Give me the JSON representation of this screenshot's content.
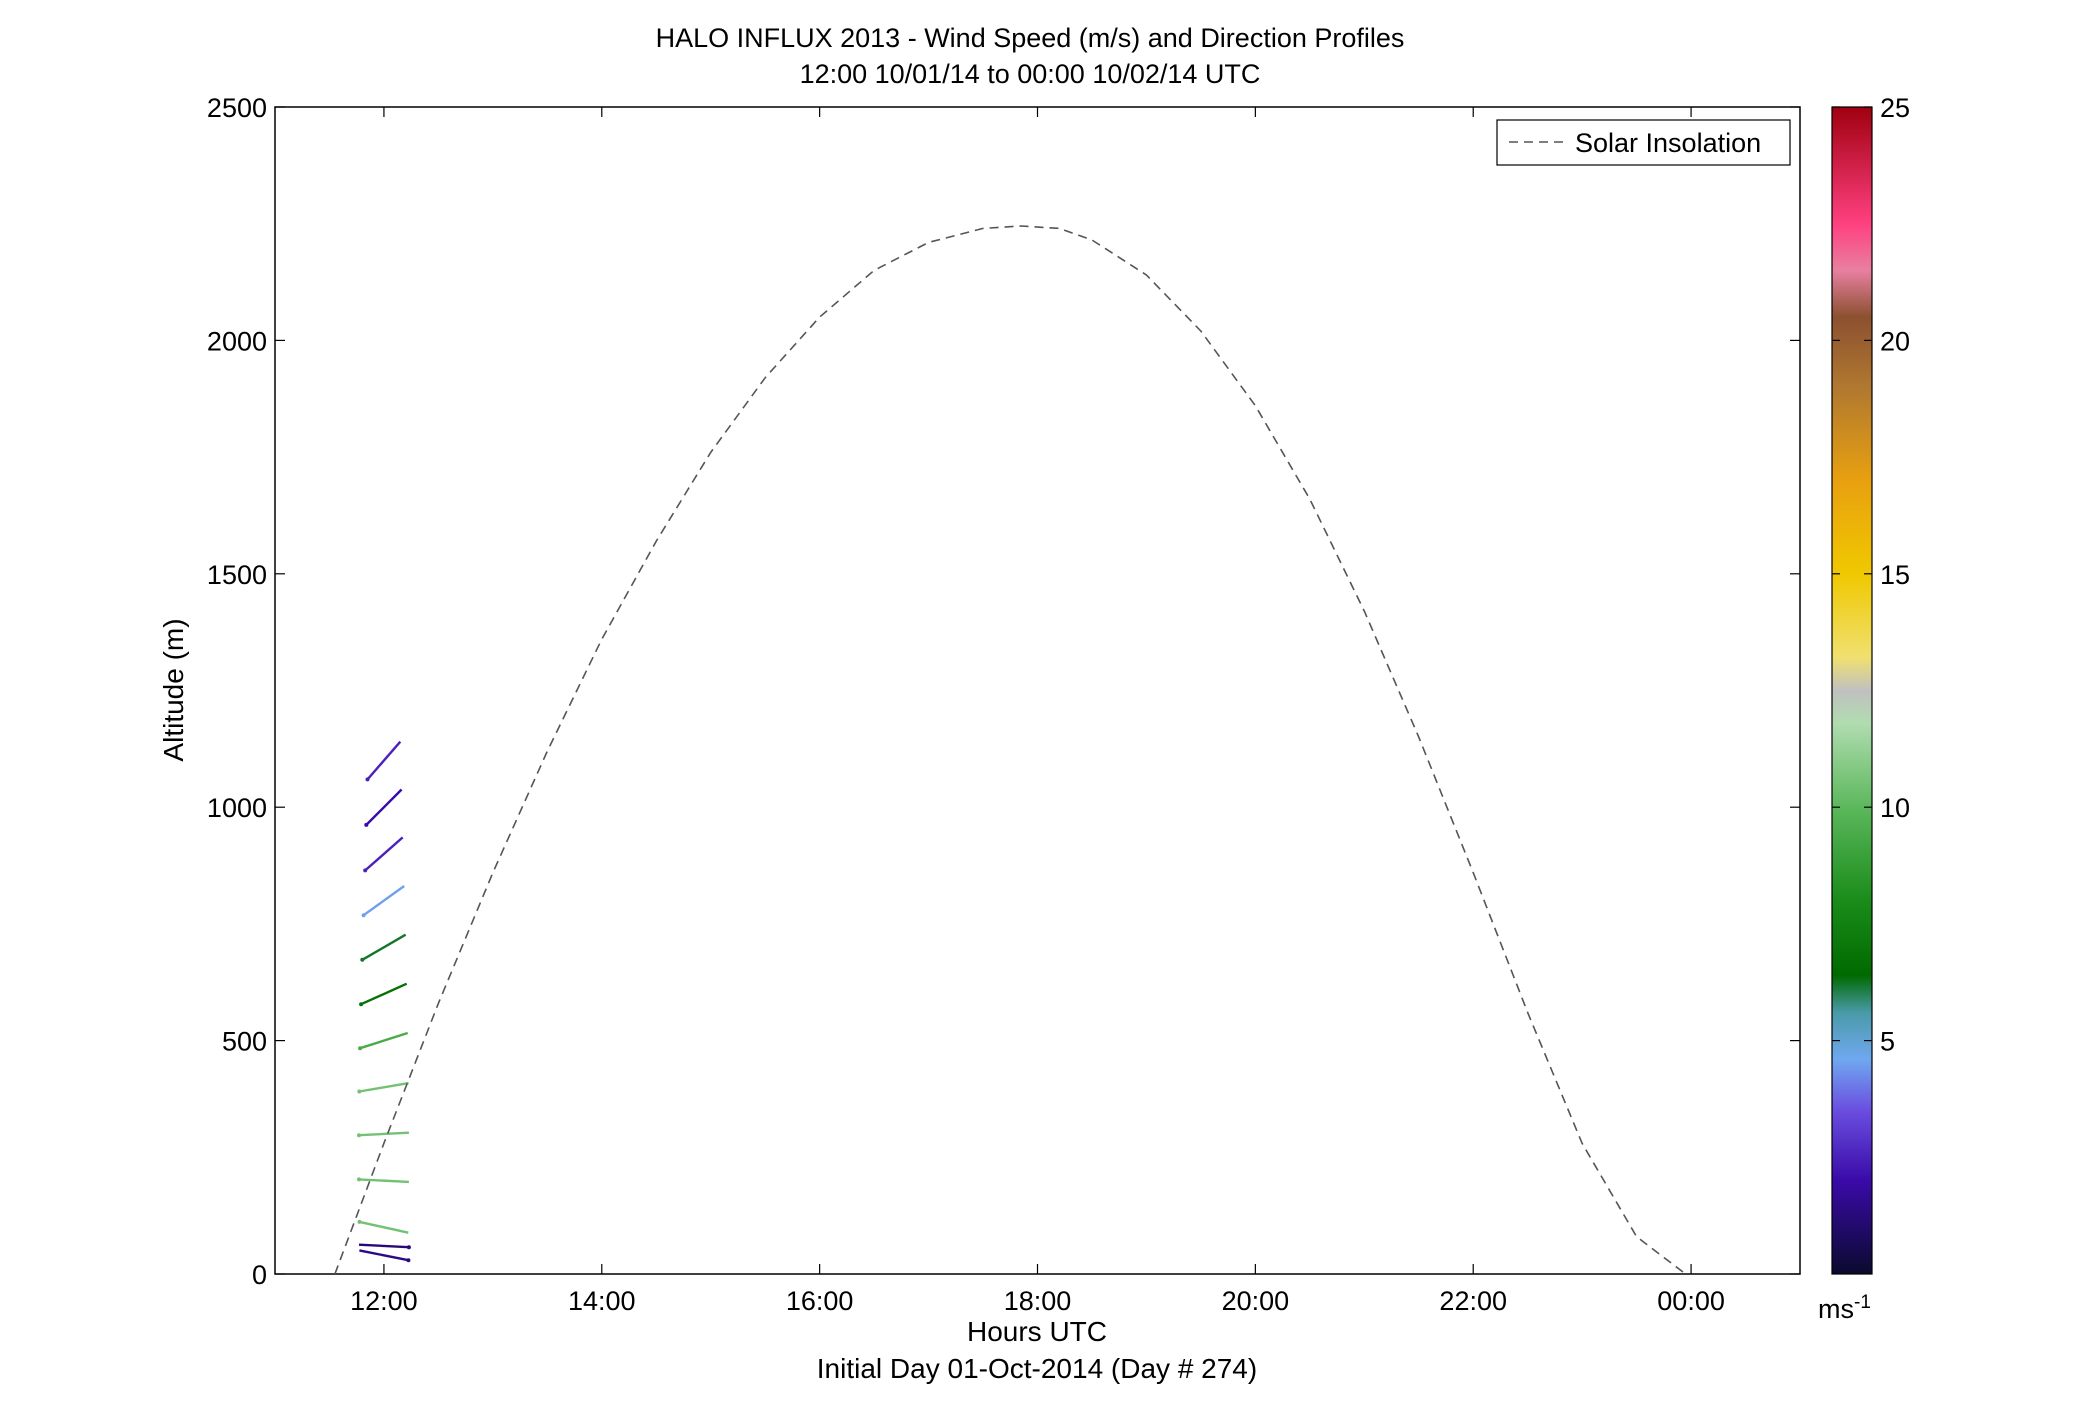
{
  "chart_data": {
    "type": "scatter",
    "subtype": "wind-barb-profile",
    "title": "HALO INFLUX 2013 - Wind Speed (m/s) and Direction Profiles",
    "subtitle": "12:00 10/01/14 to 00:00 10/02/14  UTC",
    "xlabel": "Hours UTC",
    "xlabel2": "Initial Day 01-Oct-2014 (Day # 274)",
    "ylabel": "Altitude (m)",
    "xlim": [
      11.0,
      25.0
    ],
    "ylim": [
      0,
      2500
    ],
    "xticks": [
      {
        "value": 12,
        "label": "12:00"
      },
      {
        "value": 14,
        "label": "14:00"
      },
      {
        "value": 16,
        "label": "16:00"
      },
      {
        "value": 18,
        "label": "18:00"
      },
      {
        "value": 20,
        "label": "20:00"
      },
      {
        "value": 22,
        "label": "22:00"
      },
      {
        "value": 24,
        "label": "00:00"
      }
    ],
    "yticks": [
      {
        "value": 0,
        "label": "0"
      },
      {
        "value": 500,
        "label": "500"
      },
      {
        "value": 1000,
        "label": "1000"
      },
      {
        "value": 1500,
        "label": "1500"
      },
      {
        "value": 2000,
        "label": "2000"
      },
      {
        "value": 2500,
        "label": "2500"
      }
    ],
    "colorbar": {
      "range": [
        0,
        25
      ],
      "ticks": [
        {
          "value": 5,
          "label": "5"
        },
        {
          "value": 10,
          "label": "10"
        },
        {
          "value": 15,
          "label": "15"
        },
        {
          "value": 20,
          "label": "20"
        },
        {
          "value": 25,
          "label": "25"
        }
      ],
      "unit": "ms",
      "unit_exp": "-1",
      "stops": [
        {
          "v": 0,
          "c": "#0a0a2e"
        },
        {
          "v": 2.0,
          "c": "#3a0aa8"
        },
        {
          "v": 3.5,
          "c": "#6a4ee0"
        },
        {
          "v": 4.6,
          "c": "#6fa8f0"
        },
        {
          "v": 5.6,
          "c": "#4a9aa8"
        },
        {
          "v": 6.4,
          "c": "#006a00"
        },
        {
          "v": 8.0,
          "c": "#1a8c1a"
        },
        {
          "v": 10.0,
          "c": "#5cb85c"
        },
        {
          "v": 11.8,
          "c": "#b0dcb0"
        },
        {
          "v": 12.5,
          "c": "#c0c0c0"
        },
        {
          "v": 13.2,
          "c": "#f0e070"
        },
        {
          "v": 15.0,
          "c": "#f0c800"
        },
        {
          "v": 17.0,
          "c": "#e8a010"
        },
        {
          "v": 19.0,
          "c": "#b07830"
        },
        {
          "v": 20.5,
          "c": "#8c5030"
        },
        {
          "v": 21.5,
          "c": "#e880a0"
        },
        {
          "v": 22.5,
          "c": "#ff4080"
        },
        {
          "v": 25.0,
          "c": "#a00010"
        }
      ]
    },
    "legend": {
      "label": "Solar Insolation",
      "position": "top-right",
      "style": "dashed",
      "color": "#555555"
    },
    "solar_insolation": {
      "x": [
        11.55,
        12.0,
        12.5,
        13.0,
        13.5,
        14.0,
        14.5,
        15.0,
        15.5,
        16.0,
        16.5,
        17.0,
        17.5,
        17.85,
        18.2,
        18.5,
        19.0,
        19.5,
        20.0,
        20.5,
        21.0,
        21.5,
        22.0,
        22.5,
        23.0,
        23.5,
        23.95
      ],
      "y": [
        0,
        280,
        580,
        860,
        1120,
        1360,
        1570,
        1760,
        1920,
        2050,
        2150,
        2210,
        2240,
        2245,
        2240,
        2215,
        2140,
        2020,
        1860,
        1660,
        1420,
        1150,
        860,
        560,
        280,
        80,
        0
      ]
    },
    "columns": [
      {
        "x": 12.0,
        "profile": [
          [
            -1,
            10.5,
            -0.22
          ],
          [
            -1,
            10.5,
            -0.05
          ],
          [
            -1,
            10.5,
            0.05
          ],
          [
            -1,
            10.5,
            0.17
          ],
          [
            -1,
            9.4,
            0.32
          ],
          [
            -1,
            6.8,
            0.45
          ],
          [
            -1,
            6.2,
            0.58
          ],
          [
            -1,
            4.5,
            0.72
          ],
          [
            -1,
            2.5,
            0.88
          ],
          [
            -1,
            2.0,
            1.0
          ],
          [
            -1,
            2.5,
            1.15
          ]
        ],
        "near_ground": [
          [
            40,
            1.4,
            0.2
          ],
          [
            60,
            1.2,
            0.05
          ]
        ]
      }
    ]
  }
}
